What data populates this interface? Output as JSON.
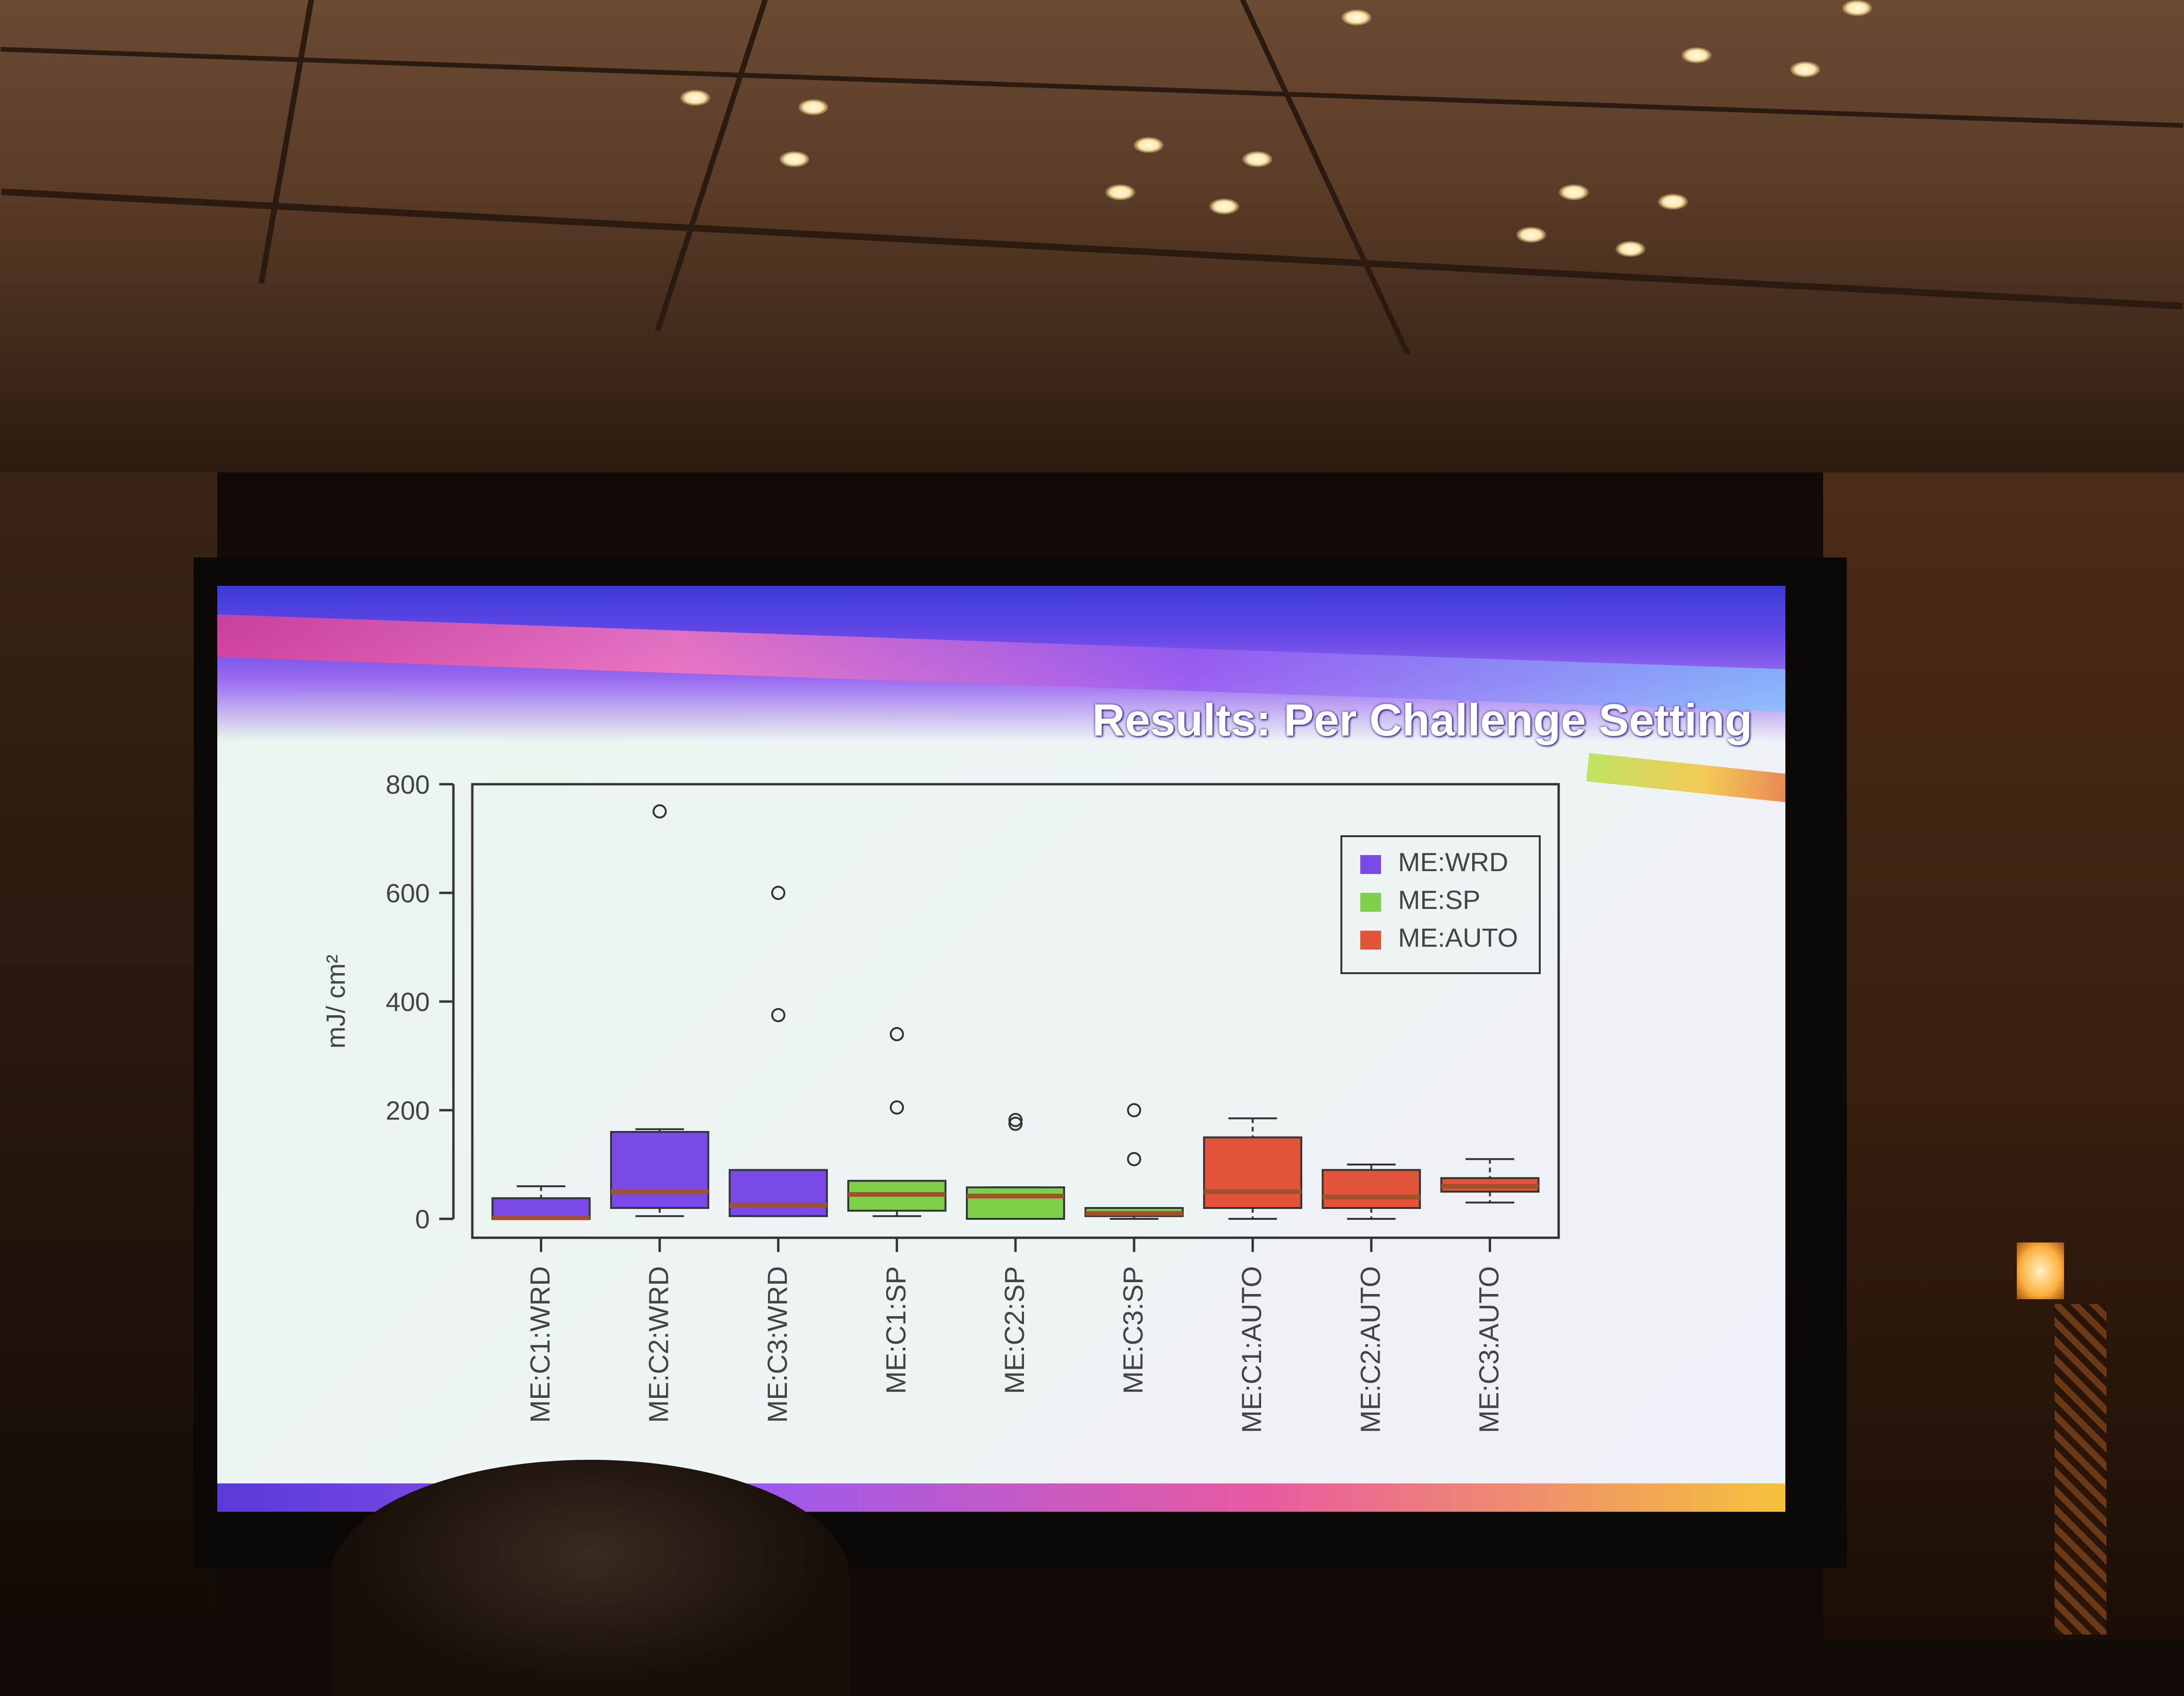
{
  "slide": {
    "title": "Results: Per Challenge Setting"
  },
  "chart_data": {
    "type": "boxplot",
    "title": "",
    "xlabel": "",
    "ylabel": "mJ/ cm²",
    "ylim": [
      0,
      800
    ],
    "yticks": [
      "0",
      "200",
      "400",
      "600",
      "800"
    ],
    "legend": {
      "position": "top-right",
      "entries": [
        {
          "label": "ME:WRD",
          "color": "#7a4ae6"
        },
        {
          "label": "ME:SP",
          "color": "#7ed04a"
        },
        {
          "label": "ME:AUTO",
          "color": "#e2543a"
        }
      ]
    },
    "median_color": "#a0522d",
    "boxes": [
      {
        "category": "ME:C1:WRD",
        "group": "ME:WRD",
        "whisker_low": 0,
        "q1": 0,
        "median": 2,
        "q3": 38,
        "whisker_high": 60,
        "outliers": []
      },
      {
        "category": "ME:C2:WRD",
        "group": "ME:WRD",
        "whisker_low": 5,
        "q1": 20,
        "median": 50,
        "q3": 160,
        "whisker_high": 165,
        "outliers": [
          750
        ]
      },
      {
        "category": "ME:C3:WRD",
        "group": "ME:WRD",
        "whisker_low": 5,
        "q1": 5,
        "median": 25,
        "q3": 90,
        "whisker_high": 90,
        "outliers": [
          375,
          600
        ]
      },
      {
        "category": "ME:C1:SP",
        "group": "ME:SP",
        "whisker_low": 5,
        "q1": 15,
        "median": 45,
        "q3": 70,
        "whisker_high": 70,
        "outliers": [
          205,
          340
        ]
      },
      {
        "category": "ME:C2:SP",
        "group": "ME:SP",
        "whisker_low": 0,
        "q1": 0,
        "median": 42,
        "q3": 58,
        "whisker_high": 58,
        "outliers": [
          175,
          182
        ]
      },
      {
        "category": "ME:C3:SP",
        "group": "ME:SP",
        "whisker_low": 0,
        "q1": 5,
        "median": 10,
        "q3": 20,
        "whisker_high": 20,
        "outliers": [
          110,
          200
        ]
      },
      {
        "category": "ME:C1:AUTO",
        "group": "ME:AUTO",
        "whisker_low": 0,
        "q1": 20,
        "median": 50,
        "q3": 150,
        "whisker_high": 185,
        "outliers": []
      },
      {
        "category": "ME:C2:AUTO",
        "group": "ME:AUTO",
        "whisker_low": 0,
        "q1": 20,
        "median": 40,
        "q3": 90,
        "whisker_high": 100,
        "outliers": []
      },
      {
        "category": "ME:C3:AUTO",
        "group": "ME:AUTO",
        "whisker_low": 30,
        "q1": 50,
        "median": 60,
        "q3": 75,
        "whisker_high": 110,
        "outliers": []
      }
    ]
  }
}
